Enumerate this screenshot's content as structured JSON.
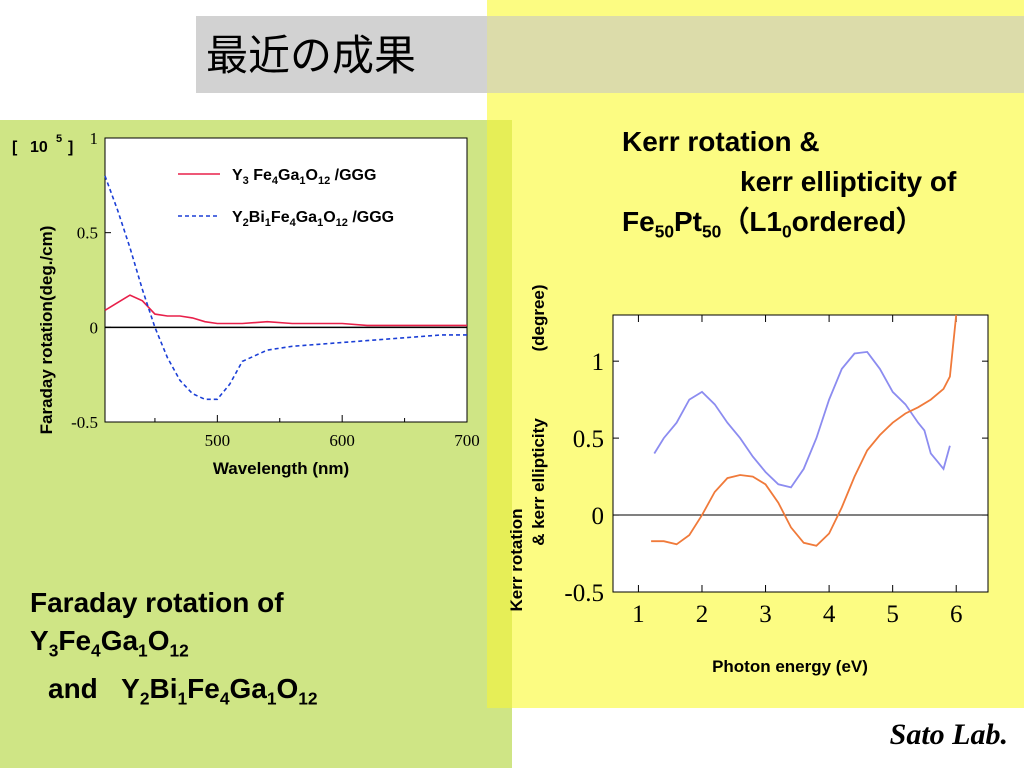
{
  "title": "最近の成果",
  "left_caption": {
    "line1": "Faraday rotation of",
    "line2_parts": [
      "Y",
      "3",
      "Fe",
      "4",
      "Ga",
      "1",
      "O",
      "12"
    ],
    "line3_prefix": "and",
    "line3_parts": [
      "Y",
      "2",
      "Bi",
      "1",
      "Fe",
      "4",
      "Ga",
      "1",
      "O",
      "12"
    ]
  },
  "right_caption": {
    "line1": "Kerr rotation &",
    "line2": "kerr ellipticity of",
    "line3_parts": [
      "Fe",
      "50",
      "Pt",
      "50",
      "（L1",
      "0",
      "ordered）"
    ]
  },
  "lab": "Sato Lab.",
  "colors": {
    "red_series": "#e8204a",
    "blue_series": "#1b3fd6",
    "kerr_orange": "#f07a3a",
    "kerr_blue": "#8c8cf0"
  },
  "chart_data": [
    {
      "type": "line",
      "xlabel": "Wavelength (nm)",
      "ylabel": "Faraday rotation(deg./cm)",
      "y_multiplier_label": {
        "base": "10",
        "exp": "5"
      },
      "xlim": [
        410,
        700
      ],
      "ylim": [
        -0.5,
        1
      ],
      "x_ticks": [
        "500",
        "600",
        "700"
      ],
      "y_ticks": [
        "1",
        "0.5",
        "0",
        "-0.5"
      ],
      "legend_position": "top-right",
      "series": [
        {
          "name": "Y3 Fe4Ga1O12 /GGG",
          "legend_parts": [
            "Y",
            "3",
            " Fe",
            "4",
            "Ga",
            "1",
            "O",
            "12",
            " /GGG"
          ],
          "style": "solid",
          "color": "#e8204a",
          "x": [
            410,
            420,
            430,
            440,
            450,
            460,
            470,
            480,
            490,
            500,
            520,
            540,
            560,
            580,
            600,
            620,
            640,
            660,
            680,
            700
          ],
          "y": [
            0.09,
            0.13,
            0.17,
            0.14,
            0.07,
            0.06,
            0.06,
            0.05,
            0.03,
            0.02,
            0.02,
            0.03,
            0.02,
            0.02,
            0.02,
            0.01,
            0.01,
            0.01,
            0.01,
            0.01
          ]
        },
        {
          "name": "Y2Bi1Fe4Ga1O12 /GGG",
          "legend_parts": [
            "Y",
            "2",
            "Bi",
            "1",
            "Fe",
            "4",
            "Ga",
            "1",
            "O",
            "12",
            " /GGG"
          ],
          "style": "dashed",
          "color": "#1b3fd6",
          "x": [
            410,
            420,
            430,
            440,
            450,
            460,
            470,
            480,
            490,
            500,
            510,
            520,
            540,
            560,
            580,
            600,
            620,
            640,
            660,
            680,
            700
          ],
          "y": [
            0.8,
            0.62,
            0.42,
            0.2,
            0.0,
            -0.16,
            -0.28,
            -0.35,
            -0.38,
            -0.38,
            -0.3,
            -0.18,
            -0.12,
            -0.1,
            -0.09,
            -0.08,
            -0.07,
            -0.06,
            -0.05,
            -0.04,
            -0.04
          ]
        }
      ]
    },
    {
      "type": "line",
      "xlabel": "Photon energy (eV)",
      "ylabel_line1": "Kerr rotation",
      "ylabel_line2": "& kerr ellipticity",
      "ylabel_unit": "(degree)",
      "xlim": [
        0.6,
        6.5
      ],
      "ylim": [
        -0.5,
        1.3
      ],
      "x_ticks": [
        "1",
        "2",
        "3",
        "4",
        "5",
        "6"
      ],
      "y_ticks": [
        "1",
        "0.5",
        "0",
        "-0.5"
      ],
      "series": [
        {
          "color": "#8c8cf0",
          "x": [
            1.25,
            1.4,
            1.6,
            1.8,
            2.0,
            2.2,
            2.4,
            2.6,
            2.8,
            3.0,
            3.2,
            3.4,
            3.6,
            3.8,
            4.0,
            4.2,
            4.4,
            4.6,
            4.8,
            5.0,
            5.2,
            5.4,
            5.5,
            5.6,
            5.7,
            5.8,
            5.9
          ],
          "y": [
            0.4,
            0.5,
            0.6,
            0.75,
            0.8,
            0.72,
            0.6,
            0.5,
            0.38,
            0.28,
            0.2,
            0.18,
            0.3,
            0.5,
            0.75,
            0.95,
            1.05,
            1.06,
            0.95,
            0.8,
            0.72,
            0.6,
            0.55,
            0.4,
            0.35,
            0.3,
            0.45
          ]
        },
        {
          "color": "#f07a3a",
          "x": [
            1.2,
            1.4,
            1.6,
            1.8,
            2.0,
            2.2,
            2.4,
            2.6,
            2.8,
            3.0,
            3.2,
            3.4,
            3.6,
            3.8,
            4.0,
            4.2,
            4.4,
            4.6,
            4.8,
            5.0,
            5.2,
            5.4,
            5.6,
            5.8,
            5.9,
            6.0
          ],
          "y": [
            -0.17,
            -0.17,
            -0.19,
            -0.13,
            0.0,
            0.15,
            0.24,
            0.26,
            0.25,
            0.2,
            0.08,
            -0.08,
            -0.18,
            -0.2,
            -0.12,
            0.05,
            0.25,
            0.42,
            0.52,
            0.6,
            0.66,
            0.7,
            0.75,
            0.82,
            0.9,
            1.3
          ]
        }
      ]
    }
  ]
}
